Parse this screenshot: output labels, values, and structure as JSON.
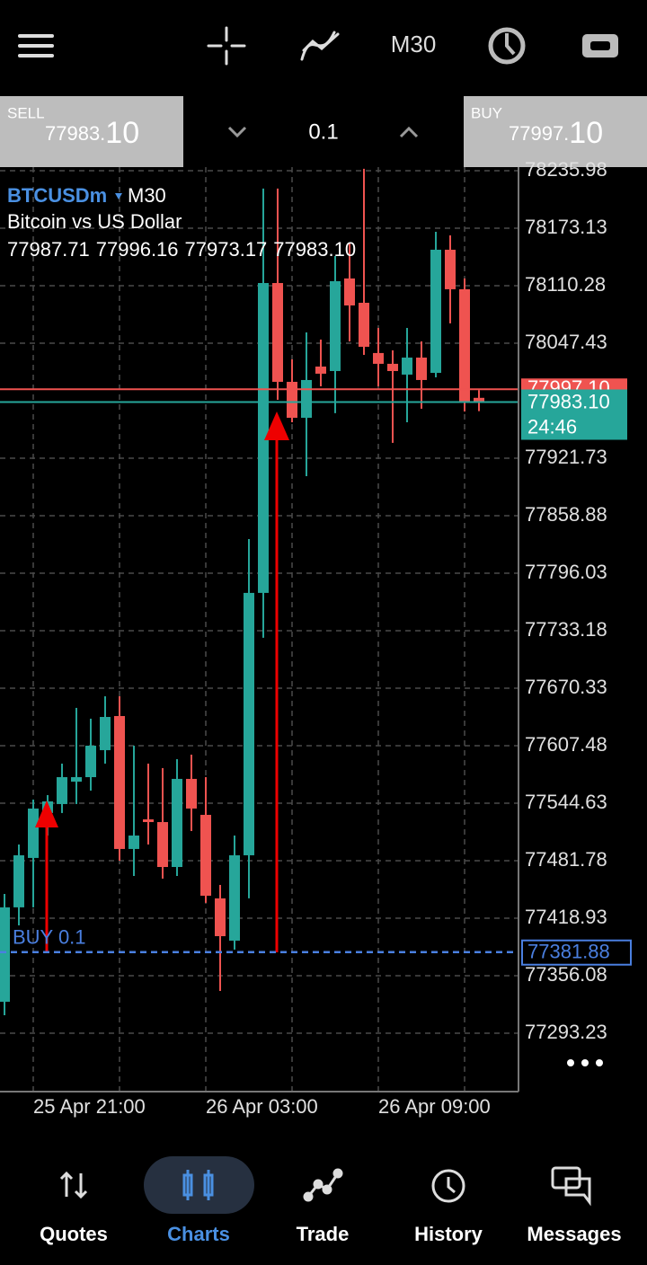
{
  "toolbar": {
    "timeframe": "M30"
  },
  "trade_panel": {
    "sell": {
      "label": "SELL",
      "price": "77983.",
      "price_big": "10"
    },
    "volume": "0.1",
    "buy": {
      "label": "BUY",
      "price": "77997.",
      "price_big": "10"
    }
  },
  "chart_data": {
    "type": "candlestick",
    "symbol": "BTCUSDm",
    "timeframe": "M30",
    "description": "Bitcoin vs US Dollar",
    "ohlc_text": [
      "77987.71",
      "77996.16",
      "77973.17",
      "77983.10"
    ],
    "categories": [
      null,
      null,
      "25 Apr 21:00",
      null,
      null,
      null,
      null,
      null,
      null,
      null,
      null,
      null,
      null,
      null,
      "26 Apr 03:00",
      null,
      null,
      null,
      null,
      null,
      null,
      null,
      null,
      null,
      null,
      null,
      "26 Apr 09:00",
      null,
      null,
      null,
      null,
      null,
      null,
      null
    ],
    "open": [
      77327.6,
      77430.8,
      77484.8,
      77533.9,
      77543.7,
      77568.2,
      77573.1,
      77602.6,
      77639.9,
      77494.6,
      77527.0,
      77524.0,
      77474.9,
      77571.2,
      77531.9,
      77440.6,
      77394.4,
      77487.7,
      77774.5,
      78113.2,
      78005.2,
      77965.9,
      78021.9,
      78017.0,
      78118.2,
      78091.6,
      78036.7,
      78024.9,
      78013.1,
      78031.7,
      78015.0,
      78149.6,
      78106.4,
      77987.71
    ],
    "high": [
      77445.5,
      77499.5,
      77548.6,
      77553.5,
      77587.9,
      77648.8,
      77637.0,
      77661.5,
      77661.5,
      77607.5,
      77587.9,
      77583.0,
      77592.8,
      77597.7,
      77573.1,
      77455.3,
      77509.3,
      77833.4,
      78216.4,
      78216.4,
      78029.8,
      78059.2,
      78051.4,
      78142.7,
      78157.4,
      78238.0,
      78064.1,
      78039.6,
      78064.1,
      78049.4,
      78169.2,
      78165.3,
      78118.2,
      77996.16
    ],
    "low": [
      77312.9,
      77411.1,
      77430.8,
      77509.3,
      77533.9,
      77543.7,
      77558.4,
      77587.9,
      77481.8,
      77465.1,
      77499.5,
      77462.2,
      77465.1,
      77514.2,
      77435.7,
      77339.4,
      77384.6,
      77440.6,
      77725.4,
      77985.6,
      77961.0,
      77902.1,
      78000.3,
      77970.9,
      78049.4,
      78034.7,
      78000.3,
      77938.5,
      77961.0,
      77975.8,
      78010.1,
      78069.1,
      77972.8,
      77973.17
    ],
    "close": [
      77430.8,
      77487.7,
      77538.8,
      77546.6,
      77573.1,
      77573.1,
      77607.5,
      77638.9,
      77494.6,
      77509.3,
      77524.0,
      77474.9,
      77571.2,
      77538.8,
      77443.5,
      77399.3,
      77487.7,
      77774.5,
      78113.2,
      78005.2,
      77965.9,
      78007.2,
      78014.1,
      78115.2,
      78088.7,
      78043.5,
      78024.9,
      78017.0,
      78031.7,
      78007.2,
      78149.6,
      78106.4,
      77983.6,
      77983.1
    ],
    "up_color": "#26a69a",
    "down_color": "#ef5350",
    "ylim": [
      77229.4,
      78239.9
    ],
    "yticks": [
      78235.98,
      78173.13,
      78110.28,
      78047.43,
      77921.73,
      77858.88,
      77796.03,
      77733.18,
      77670.33,
      77607.48,
      77544.63,
      77481.78,
      77418.93,
      77356.08,
      77293.23
    ],
    "grid": true,
    "ask": {
      "value": 77997.1,
      "label": "77997.10",
      "color": "#ef5350"
    },
    "bid": {
      "value": 77983.1,
      "label": "77983.10",
      "color": "#26a69a"
    },
    "countdown": "24:46",
    "order": {
      "label": "BUY 0.1",
      "value": 77381.88,
      "color": "#4a7fe0"
    }
  },
  "nav": {
    "items": [
      "Quotes",
      "Charts",
      "Trade",
      "History",
      "Messages"
    ],
    "active": 1
  }
}
